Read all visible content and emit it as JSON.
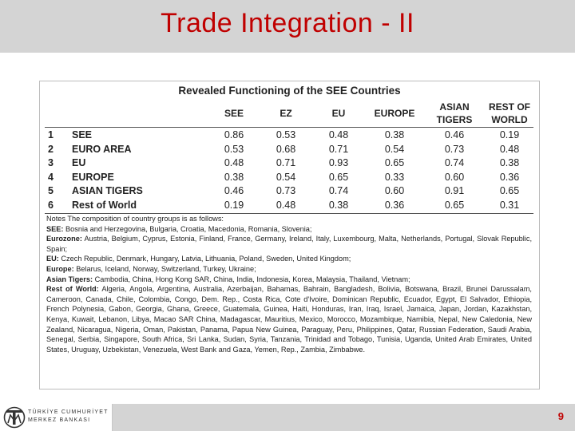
{
  "slide": {
    "title": "Trade Integration - II",
    "page_number": "9"
  },
  "logo": {
    "line1": "TÜRKİYE CUMHURİYET",
    "line2": "MERKEZ BANKASI"
  },
  "table": {
    "title": "Revealed Functioning of the SEE Countries",
    "columns": [
      [
        "SEE"
      ],
      [
        "EZ"
      ],
      [
        "EU"
      ],
      [
        "EUROPE"
      ],
      [
        "ASIAN",
        "TIGERS"
      ],
      [
        "REST OF",
        "WORLD"
      ]
    ],
    "rows": [
      {
        "num": "1",
        "name": "SEE",
        "values": [
          "0.86",
          "0.53",
          "0.48",
          "0.38",
          "0.46",
          "0.19"
        ]
      },
      {
        "num": "2",
        "name": "EURO AREA",
        "values": [
          "0.53",
          "0.68",
          "0.71",
          "0.54",
          "0.73",
          "0.48"
        ]
      },
      {
        "num": "3",
        "name": "EU",
        "values": [
          "0.48",
          "0.71",
          "0.93",
          "0.65",
          "0.74",
          "0.38"
        ]
      },
      {
        "num": "4",
        "name": "EUROPE",
        "values": [
          "0.38",
          "0.54",
          "0.65",
          "0.33",
          "0.60",
          "0.36"
        ]
      },
      {
        "num": "5",
        "name": "ASIAN TIGERS",
        "values": [
          "0.46",
          "0.73",
          "0.74",
          "0.60",
          "0.91",
          "0.65"
        ]
      },
      {
        "num": "6",
        "name": "Rest of World",
        "values": [
          "0.19",
          "0.48",
          "0.38",
          "0.36",
          "0.65",
          "0.31"
        ]
      }
    ]
  },
  "notes": {
    "intro": "Notes The composition of country groups is as follows:",
    "groups": [
      {
        "label": "SEE:",
        "text": " Bosnia and Herzegovina, Bulgaria, Croatia, Macedonia, Romania, Slovenia;"
      },
      {
        "label": "Eurozone:",
        "text": " Austria, Belgium, Cyprus, Estonia, Finland, France, Germany, Ireland, Italy, Luxembourg, Malta, Netherlands, Portugal, Slovak Republic, Spain;"
      },
      {
        "label": "EU:",
        "text": " Czech Republic, Denmark, Hungary, Latvia, Lithuania, Poland, Sweden, United Kingdom;"
      },
      {
        "label": "Europe:",
        "text": " Belarus, Iceland, Norway, Switzerland, Turkey, Ukraine;"
      },
      {
        "label": "Asian Tigers:",
        "text": " Cambodia, China, Hong Kong SAR, China, India, Indonesia, Korea, Malaysia, Thailand, Vietnam;"
      },
      {
        "label": "Rest of World:",
        "text": " Algeria, Angola, Argentina, Australia, Azerbaijan, Bahamas, Bahrain, Bangladesh, Bolivia, Botswana, Brazil, Brunei Darussalam, Cameroon, Canada, Chile, Colombia, Congo, Dem. Rep., Costa Rica, Cote d'Ivoire, Dominican Republic, Ecuador, Egypt, El Salvador, Ethiopia, French Polynesia, Gabon, Georgia, Ghana, Greece, Guatemala, Guinea, Haiti, Honduras, Iran, Iraq, Israel, Jamaica, Japan, Jordan, Kazakhstan, Kenya, Kuwait, Lebanon, Libya, Macao SAR China, Madagascar, Mauritius, Mexico, Morocco, Mozambique, Namibia, Nepal, New Caledonia, New Zealand, Nicaragua, Nigeria, Oman, Pakistan, Panama, Papua New Guinea, Paraguay, Peru, Philippines, Qatar, Russian Federation, Saudi Arabia, Senegal, Serbia, Singapore, South Africa, Sri Lanka, Sudan, Syria, Tanzania, Trinidad and Tobago, Tunisia, Uganda, United Arab Emirates, United States, Uruguay, Uzbekistan, Venezuela, West Bank and Gaza, Yemen, Rep., Zambia, Zimbabwe."
      }
    ]
  },
  "colors": {
    "title_red": "#c00000",
    "bar_gray": "#d4d4d4"
  },
  "icons": {
    "logo": "tcmb-logo-icon"
  }
}
